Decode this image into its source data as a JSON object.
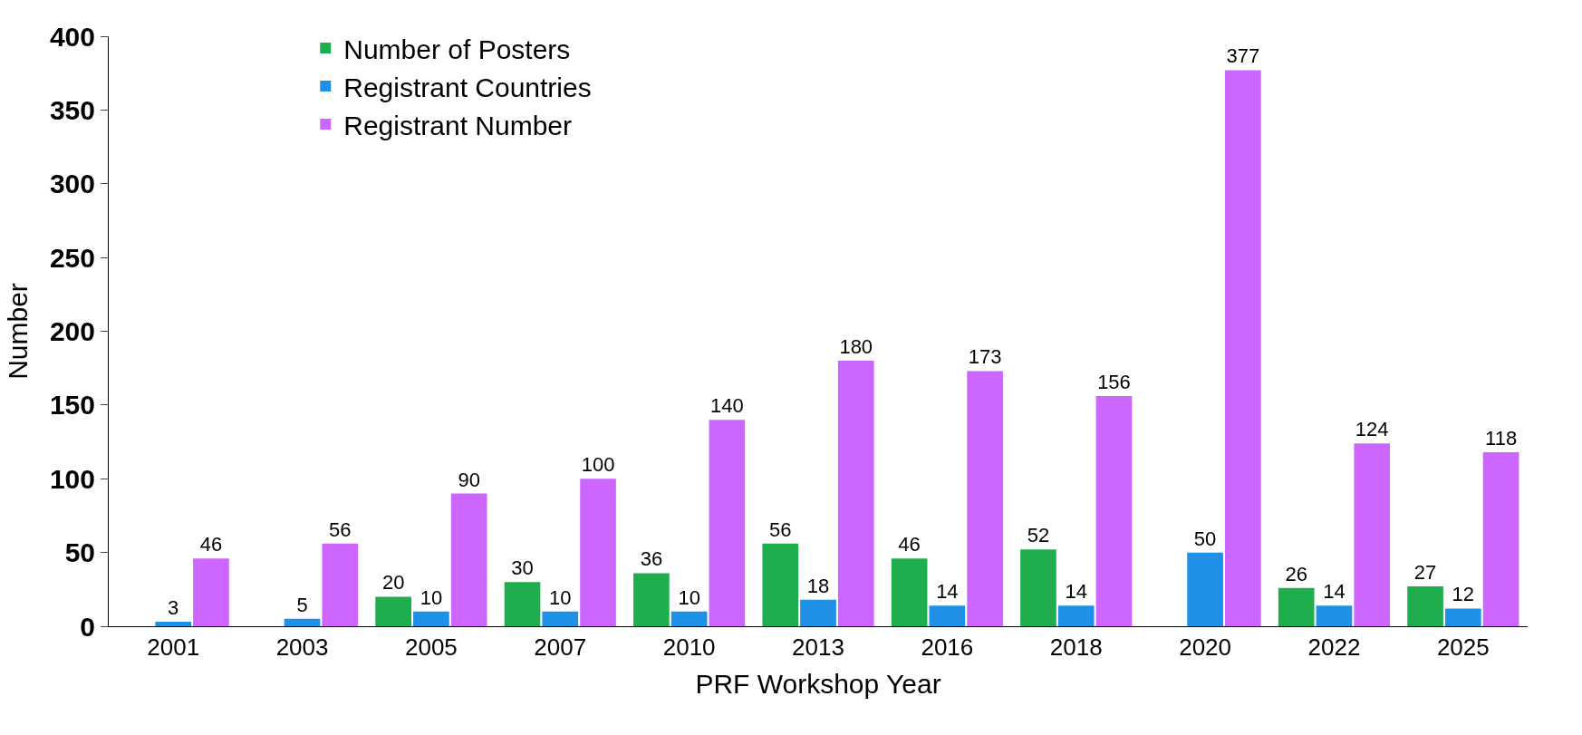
{
  "chart_data": {
    "type": "bar",
    "xlabel": "PRF Workshop Year",
    "ylabel": "Number",
    "categories": [
      "2001",
      "2003",
      "2005",
      "2007",
      "2010",
      "2013",
      "2016",
      "2018",
      "2020",
      "2022",
      "2025"
    ],
    "series": [
      {
        "name": "Number of Posters",
        "color": "#1fae4e",
        "values": [
          null,
          null,
          20,
          30,
          36,
          56,
          46,
          52,
          null,
          26,
          27
        ]
      },
      {
        "name": "Registrant Countries",
        "color": "#1e90e6",
        "values": [
          3,
          5,
          10,
          10,
          10,
          18,
          14,
          14,
          50,
          14,
          12
        ]
      },
      {
        "name": "Registrant Number",
        "color": "#cc66ff",
        "values": [
          46,
          56,
          90,
          100,
          140,
          180,
          173,
          156,
          377,
          124,
          118
        ]
      }
    ],
    "ylim": [
      0,
      400
    ],
    "yticks": [
      0,
      50,
      100,
      150,
      200,
      250,
      300,
      350,
      400
    ],
    "data_labels": true,
    "legend": "top left"
  }
}
